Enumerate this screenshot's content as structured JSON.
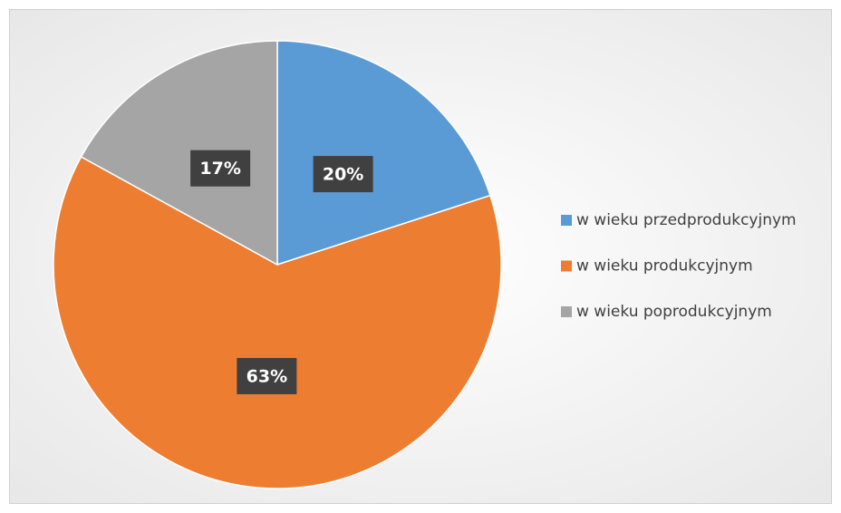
{
  "chart_data": {
    "type": "pie",
    "categories": [
      "w wieku przedprodukcyjnym",
      "w wieku produkcyjnym",
      "w wieku poprodukcyjnym"
    ],
    "values": [
      20,
      63,
      17
    ],
    "value_labels": [
      "20%",
      "63%",
      "17%"
    ],
    "colors": [
      "#5b9bd5",
      "#ed7d31",
      "#a5a5a5"
    ],
    "legend": "right"
  }
}
